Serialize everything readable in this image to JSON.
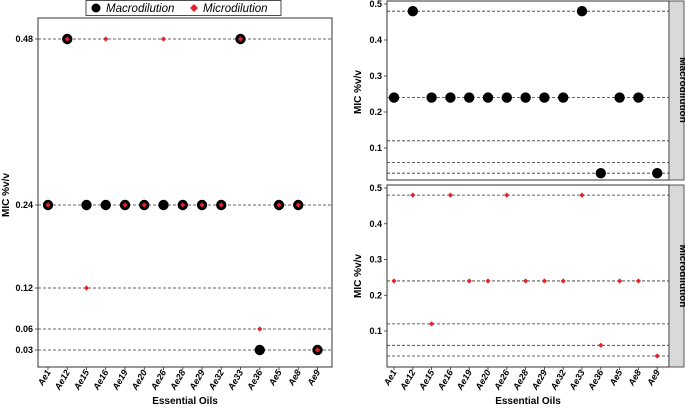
{
  "chart_data": [
    {
      "id": "left",
      "type": "scatter",
      "xlabel": "Essential Oils",
      "ylabel": "MIC %v/v",
      "categories": [
        "Ae1",
        "Ae12",
        "Ae15",
        "Ae16",
        "Ae19",
        "Ae20",
        "Ae26",
        "Ae28",
        "Ae29",
        "Ae32",
        "Ae33",
        "Ae36",
        "Ae5",
        "Ae8",
        "Ae9"
      ],
      "yticks": [
        0.03,
        0.06,
        0.12,
        0.24,
        0.48
      ],
      "ytick_labels": [
        "0.03",
        "0.06",
        "0.12",
        "0.24",
        "0.48"
      ],
      "hlines": [
        0.03,
        0.06,
        0.12,
        0.24,
        0.48
      ],
      "legend": {
        "placement": "top",
        "entries": [
          "Macrodilution",
          "Microdilution"
        ]
      },
      "series": [
        {
          "name": "Macrodilution",
          "color": "#000000",
          "marker": "circle",
          "values": [
            0.24,
            0.48,
            0.24,
            0.24,
            0.24,
            0.24,
            0.24,
            0.24,
            0.24,
            0.24,
            0.48,
            0.03,
            0.24,
            0.24,
            0.03
          ]
        },
        {
          "name": "Microdilution",
          "color": "#e8202a",
          "marker": "diamond",
          "values": [
            0.24,
            0.48,
            0.12,
            0.48,
            0.24,
            0.24,
            0.48,
            0.24,
            0.24,
            0.24,
            0.48,
            0.06,
            0.24,
            0.24,
            0.03
          ]
        }
      ]
    },
    {
      "id": "right",
      "type": "scatter",
      "xlabel": "Essential Oils",
      "ylabel": "MIC %v/v",
      "categories": [
        "Ae1",
        "Ae12",
        "Ae15",
        "Ae16",
        "Ae19",
        "Ae20",
        "Ae26",
        "Ae28",
        "Ae29",
        "Ae32",
        "Ae33",
        "Ae36",
        "Ae5",
        "Ae8",
        "Ae9"
      ],
      "yticks": [
        0.1,
        0.2,
        0.3,
        0.4,
        0.5
      ],
      "ytick_labels": [
        "0.1",
        "0.2",
        "0.3",
        "0.4",
        "0.5"
      ],
      "ylim": [
        0.015,
        0.5
      ],
      "hlines": [
        0.03,
        0.06,
        0.12,
        0.24,
        0.48
      ],
      "facets": [
        {
          "label": "Macrodilution",
          "color": "#000000",
          "marker": "circle",
          "values": [
            0.24,
            0.48,
            0.24,
            0.24,
            0.24,
            0.24,
            0.24,
            0.24,
            0.24,
            0.24,
            0.48,
            0.03,
            0.24,
            0.24,
            0.03
          ]
        },
        {
          "label": "Microdilution",
          "color": "#e8202a",
          "marker": "diamond",
          "values": [
            0.24,
            0.48,
            0.12,
            0.48,
            0.24,
            0.24,
            0.48,
            0.24,
            0.24,
            0.24,
            0.48,
            0.06,
            0.24,
            0.24,
            0.03
          ]
        }
      ]
    }
  ]
}
